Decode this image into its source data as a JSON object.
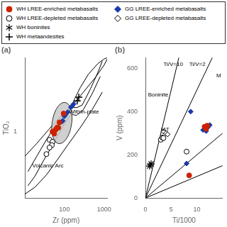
{
  "chart_data": [
    {
      "type": "legend",
      "series": [
        {
          "name": "WH LREE-enriched metabasalts",
          "color": "#cc2200",
          "marker": "circle"
        },
        {
          "name": "WH LREE-depleted metabasalts",
          "color": "black",
          "marker": "hollow-circle"
        },
        {
          "name": "WH boninites",
          "color": "black",
          "marker": "star"
        },
        {
          "name": "WH metaandesites",
          "color": "black",
          "marker": "plus"
        },
        {
          "name": "GG LREE-enriched metabasalts",
          "color": "#1a3aaa",
          "marker": "diamond"
        },
        {
          "name": "GG LREE-depleted metabasalts",
          "color": "black",
          "marker": "hollow-diamond"
        }
      ]
    },
    {
      "type": "scatter",
      "title": "(a)",
      "x_label": "Zr (ppm)",
      "y_label": "TiO₂",
      "log": true,
      "grid": false,
      "xlim": [
        10,
        1200
      ],
      "ylim": [
        0.2,
        6
      ],
      "xticks": [
        {
          "value": 10,
          "label": null
        },
        100,
        1000
      ],
      "yticks": [
        {
          "value": 0.2,
          "label": null
        },
        1,
        {
          "value": 5,
          "label": null
        }
      ],
      "annotations": [
        {
          "text": "Within-plate"
        },
        {
          "text": "Volcanic Arc"
        }
      ],
      "ellipse": {
        "cx_log": 1.935,
        "cy_log": 0.09,
        "rx_log": 0.27,
        "ry_log": 0.2,
        "angle_deg": 28
      },
      "series": [
        {
          "type": "line",
          "color": "black",
          "x": [
            12,
            20,
            35,
            55,
            80,
            110,
            140,
            170,
            200,
            280,
            450,
            700,
            900
          ],
          "values": [
            0.38,
            0.55,
            0.82,
            1.1,
            1.38,
            1.6,
            1.75,
            1.8,
            1.78,
            1.9,
            2.8,
            4.2,
            5.5
          ]
        },
        {
          "type": "line",
          "color": "black",
          "x": [
            12,
            18,
            30,
            50,
            75,
            100,
            130,
            150,
            160,
            170,
            200,
            300,
            500,
            800
          ],
          "values": [
            0.27,
            0.34,
            0.5,
            0.72,
            0.98,
            1.22,
            1.42,
            1.52,
            1.52,
            1.5,
            1.48,
            1.7,
            2.5,
            3.8
          ]
        },
        {
          "type": "line",
          "color": "black",
          "x": [
            10,
            18,
            35,
            65,
            120,
            250,
            500,
            900
          ],
          "values": [
            0.22,
            0.26,
            0.35,
            0.5,
            0.72,
            1.1,
            1.7,
            2.6
          ]
        },
        {
          "type": "line",
          "color": "black",
          "x": [
            130,
            150,
            180,
            250,
            400,
            700,
            1000,
            1200
          ],
          "values": [
            1.65,
            1.85,
            2.2,
            2.9,
            4.0,
            5.2,
            5.8,
            6.0
          ]
        },
        {
          "type": "line",
          "color": "black",
          "x": [
            10,
            20,
            40,
            80,
            160,
            300,
            600,
            1000,
            1200
          ],
          "values": [
            0.55,
            0.75,
            1.05,
            1.45,
            1.9,
            2.6,
            3.7,
            5.0,
            5.8
          ]
        },
        {
          "type": "scatter",
          "name": "WH LREE-enriched metabasalts",
          "color": "#cc2200",
          "marker": "circle",
          "x": [
            75,
            95,
            50,
            65,
            55,
            60,
            70
          ],
          "values": [
            1.25,
            1.55,
            1.0,
            1.1,
            0.95,
            1.05,
            1.1
          ]
        },
        {
          "type": "scatter",
          "name": "WH LREE-depleted metabasalts",
          "color": "black",
          "marker": "hollow-circle",
          "x": [
            42,
            50,
            48,
            42,
            35
          ],
          "values": [
            0.82,
            0.78,
            0.72,
            0.68,
            0.58
          ]
        },
        {
          "type": "scatter",
          "name": "WH metaandesites",
          "color": "black",
          "marker": "plus",
          "x": [
            210,
            230
          ],
          "values": [
            2.1,
            2.3
          ]
        },
        {
          "type": "scatter",
          "name": "GG LREE-enriched metabasalts",
          "color": "#1a3aaa",
          "marker": "diamond",
          "x": [
            90,
            105,
            120,
            100,
            145,
            170,
            155,
            88
          ],
          "values": [
            1.3,
            1.5,
            1.6,
            1.45,
            1.8,
            1.95,
            1.85,
            1.28
          ]
        }
      ]
    },
    {
      "type": "scatter",
      "title": "(b)",
      "x_label": "Ti/1000",
      "y_label": "V (ppm)",
      "grid": false,
      "xlim": [
        0,
        15
      ],
      "ylim": [
        0,
        650
      ],
      "xticks": [
        0,
        5,
        10
      ],
      "yticks": [
        0,
        200,
        400,
        600
      ],
      "annotations": [
        {
          "text": "Ti/V=10",
          "x": 3.5,
          "y": 610
        },
        {
          "text": "Ti/V=2",
          "x": 8.5,
          "y": 610
        },
        {
          "text": "Boninite",
          "x": 0.5,
          "y": 470
        },
        {
          "text": "IAT",
          "x": 3.0,
          "y": 310
        },
        {
          "text": "M",
          "x": 13.8,
          "y": 560
        }
      ],
      "series": [
        {
          "type": "line",
          "color": "black",
          "x": [
            0,
            6.5
          ],
          "values": [
            0,
            650
          ]
        },
        {
          "type": "line",
          "color": "black",
          "x": [
            0,
            13
          ],
          "values": [
            0,
            650
          ]
        },
        {
          "type": "line",
          "color": "black",
          "x": [
            0,
            15
          ],
          "values": [
            0,
            300
          ]
        },
        {
          "type": "line",
          "color": "black",
          "x": [
            0,
            15
          ],
          "values": [
            0,
            150
          ]
        },
        {
          "type": "scatter",
          "name": "WH LREE-enriched metabasalts",
          "color": "#cc2200",
          "marker": "circle",
          "x": [
            8.5,
            11.5,
            11.8,
            12.0
          ],
          "values": [
            105,
            330,
            320,
            335
          ]
        },
        {
          "type": "scatter",
          "name": "WH LREE-depleted metabasalts",
          "color": "black",
          "marker": "hollow-circle",
          "x": [
            3.0,
            3.3,
            3.5,
            8.0
          ],
          "values": [
            270,
            280,
            278,
            215
          ]
        },
        {
          "type": "scatter",
          "name": "WH boninites",
          "color": "black",
          "marker": "star",
          "x": [
            0.8,
            1.1
          ],
          "values": [
            148,
            158
          ]
        },
        {
          "type": "scatter",
          "name": "GG LREE-enriched metabasalts",
          "color": "#1a3aaa",
          "marker": "diamond",
          "x": [
            8.0,
            8.8,
            11.2,
            11.8,
            12.2,
            12.5,
            12.0
          ],
          "values": [
            160,
            400,
            315,
            310,
            330,
            338,
            325
          ]
        },
        {
          "type": "scatter",
          "name": "GG LREE-depleted metabasalts",
          "color": "black",
          "marker": "hollow-diamond",
          "x": [
            3.5,
            4.0,
            4.3
          ],
          "values": [
            308,
            300,
            295
          ]
        }
      ]
    }
  ]
}
